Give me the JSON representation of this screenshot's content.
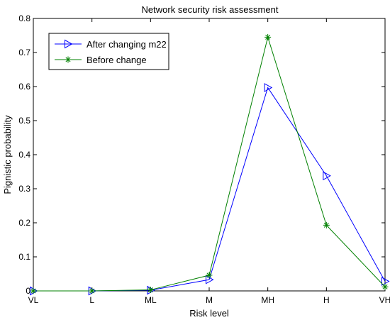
{
  "chart_data": {
    "type": "line",
    "title": "Network security risk assessment",
    "xlabel": "Risk level",
    "ylabel": "Pignistic probability",
    "categories": [
      "VL",
      "L",
      "ML",
      "M",
      "MH",
      "H",
      "VH"
    ],
    "ylim": [
      0,
      0.8
    ],
    "yticks": [
      "0",
      "0.1",
      "0.2",
      "0.3",
      "0.4",
      "0.5",
      "0.6",
      "0.7",
      "0.8"
    ],
    "grid": false,
    "legend_position": "top-left",
    "series": [
      {
        "name": "After changing m22",
        "color": "#0000ff",
        "marker": "triangle-right",
        "values": [
          0,
          0,
          0.002,
          0.033,
          0.597,
          0.338,
          0.028
        ]
      },
      {
        "name": "Before change",
        "color": "#008000",
        "marker": "asterisk",
        "values": [
          0,
          0,
          0.003,
          0.046,
          0.745,
          0.193,
          0.012
        ]
      }
    ]
  }
}
